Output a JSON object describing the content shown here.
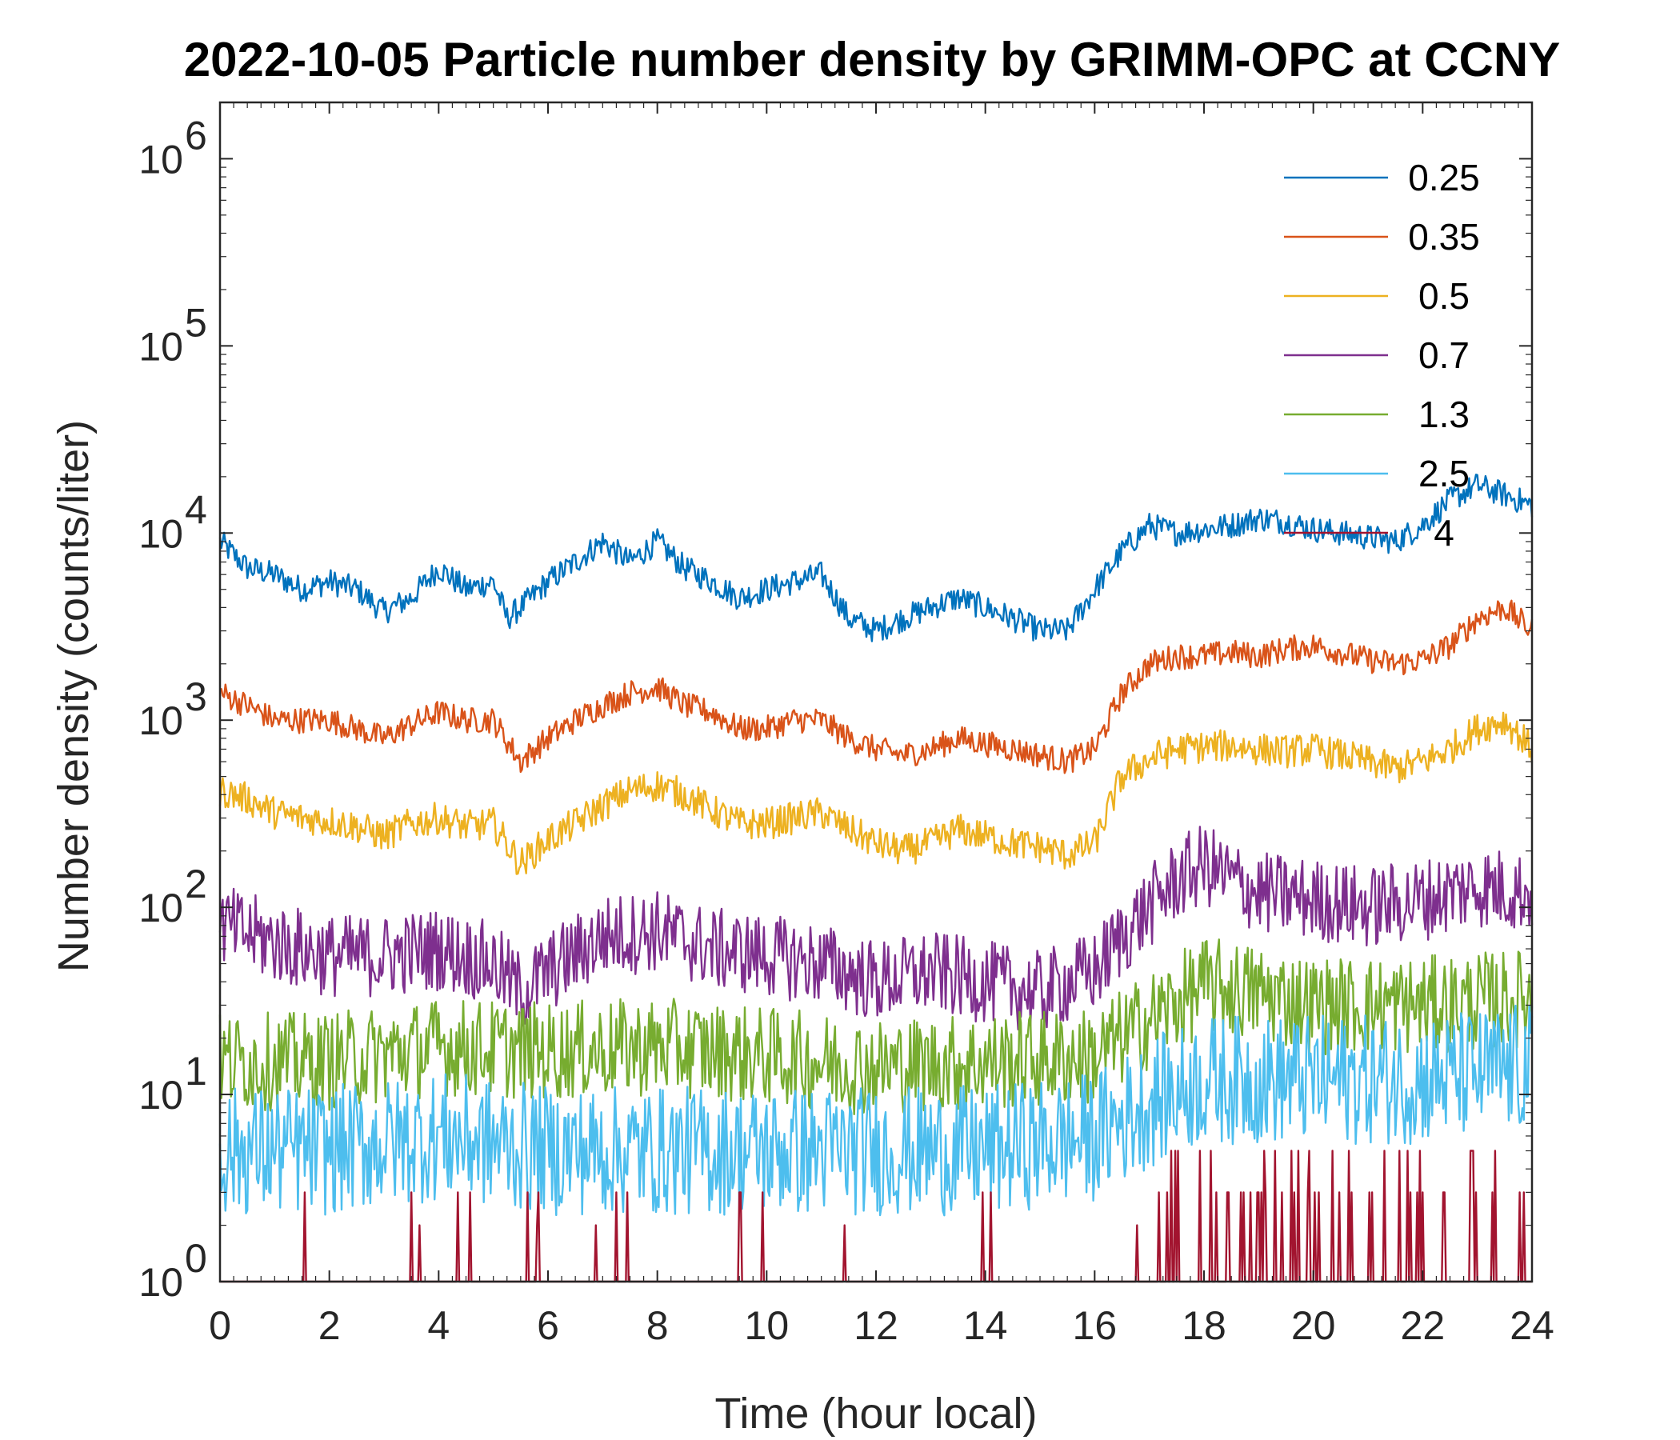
{
  "chart_data": {
    "type": "line",
    "title": "2022-10-05 Particle number density by GRIMM-OPC at CCNY",
    "xlabel": "Time (hour local)",
    "ylabel": "Number density (counts/liter)",
    "xlim": [
      0,
      24
    ],
    "ylim": [
      1,
      2000000
    ],
    "yscale": "log",
    "x_ticks": [
      0,
      2,
      4,
      6,
      8,
      10,
      12,
      14,
      16,
      18,
      20,
      22,
      24
    ],
    "y_ticks": [
      {
        "value": 1,
        "base": "10",
        "exp": "0"
      },
      {
        "value": 10,
        "base": "10",
        "exp": "1"
      },
      {
        "value": 100,
        "base": "10",
        "exp": "2"
      },
      {
        "value": 1000,
        "base": "10",
        "exp": "3"
      },
      {
        "value": 10000,
        "base": "10",
        "exp": "4"
      },
      {
        "value": 100000,
        "base": "10",
        "exp": "5"
      },
      {
        "value": 1000000,
        "base": "10",
        "exp": "6"
      }
    ],
    "grid": false,
    "legend_position": "top-right",
    "series": [
      {
        "name": "0.25",
        "color": "#0072BD",
        "x": [
          0,
          0.5,
          1,
          1.5,
          2,
          2.5,
          3,
          3.5,
          4,
          4.5,
          5,
          5.25,
          5.5,
          6,
          6.5,
          7,
          7.5,
          8,
          8.5,
          9,
          9.5,
          10,
          10.5,
          11,
          11.5,
          12,
          12.5,
          13,
          13.5,
          14,
          14.5,
          15,
          15.5,
          16,
          16.5,
          17,
          17.5,
          18,
          18.5,
          19,
          19.5,
          20,
          20.5,
          21,
          21.5,
          22,
          22.5,
          23,
          23.5,
          24
        ],
        "y": [
          9000,
          6500,
          6000,
          5000,
          5500,
          5000,
          3800,
          4500,
          6500,
          5000,
          5500,
          3500,
          4000,
          5500,
          7000,
          9000,
          7000,
          9000,
          6500,
          5500,
          4500,
          5000,
          5500,
          6000,
          3500,
          3000,
          3500,
          4000,
          4500,
          4000,
          3500,
          3000,
          3000,
          5000,
          8000,
          11000,
          10000,
          10500,
          11000,
          12000,
          11500,
          10500,
          10000,
          9500,
          9000,
          11000,
          15000,
          18000,
          16000,
          14000
        ]
      },
      {
        "name": "0.35",
        "color": "#D95319",
        "x": [
          0,
          0.5,
          1,
          1.5,
          2,
          2.5,
          3,
          3.5,
          4,
          4.5,
          5,
          5.5,
          6,
          6.5,
          7,
          7.5,
          8,
          8.5,
          9,
          9.5,
          10,
          10.5,
          11,
          11.5,
          12,
          12.5,
          13,
          13.5,
          14,
          14.5,
          15,
          15.5,
          16,
          16.5,
          17,
          17.5,
          18,
          18.5,
          19,
          19.5,
          20,
          20.5,
          21,
          21.5,
          22,
          22.5,
          23,
          23.5,
          24
        ],
        "y": [
          1400,
          1200,
          1000,
          1000,
          1000,
          900,
          800,
          950,
          1100,
          1000,
          1000,
          600,
          800,
          1000,
          1200,
          1400,
          1500,
          1200,
          1100,
          900,
          900,
          1000,
          1000,
          800,
          700,
          650,
          700,
          800,
          750,
          700,
          650,
          600,
          700,
          1400,
          2000,
          2200,
          2200,
          2300,
          2200,
          2400,
          2500,
          2300,
          2100,
          2000,
          2100,
          2500,
          3500,
          4000,
          3000
        ]
      },
      {
        "name": "0.5",
        "color": "#EDB120",
        "x": [
          0,
          0.5,
          1,
          1.5,
          2,
          2.5,
          3,
          3.5,
          4,
          4.5,
          5,
          5.5,
          6,
          6.5,
          7,
          7.5,
          8,
          8.5,
          9,
          9.5,
          10,
          10.5,
          11,
          11.5,
          12,
          12.5,
          13,
          13.5,
          14,
          14.5,
          15,
          15.5,
          16,
          16.5,
          17,
          17.5,
          18,
          18.5,
          19,
          19.5,
          20,
          20.5,
          21,
          21.5,
          22,
          22.5,
          23,
          23.5,
          24
        ],
        "y": [
          420,
          380,
          320,
          300,
          290,
          270,
          240,
          280,
          300,
          270,
          280,
          170,
          230,
          280,
          350,
          420,
          450,
          400,
          330,
          280,
          280,
          300,
          320,
          260,
          220,
          200,
          220,
          260,
          240,
          220,
          210,
          190,
          220,
          500,
          620,
          700,
          720,
          730,
          700,
          680,
          700,
          650,
          600,
          550,
          600,
          700,
          900,
          1000,
          700
        ]
      },
      {
        "name": "0.7",
        "color": "#7E2F8E",
        "x": [
          0,
          1,
          2,
          3,
          4,
          5,
          5.5,
          6,
          7,
          8,
          9,
          10,
          11,
          12,
          13,
          14,
          15,
          16,
          16.5,
          17,
          17.5,
          18,
          18.5,
          19,
          20,
          21,
          22,
          23,
          24
        ],
        "y": [
          80,
          65,
          55,
          55,
          60,
          50,
          35,
          45,
          70,
          75,
          60,
          55,
          50,
          40,
          45,
          40,
          35,
          45,
          70,
          100,
          140,
          170,
          140,
          120,
          110,
          100,
          110,
          130,
          120
        ]
      },
      {
        "name": "1.3",
        "color": "#77AC30",
        "x": [
          0,
          2,
          4,
          6,
          8,
          10,
          12,
          14,
          16,
          17,
          18,
          19,
          20,
          22,
          24
        ],
        "y": [
          15,
          15,
          18,
          17,
          18,
          16,
          14,
          15,
          16,
          25,
          38,
          35,
          30,
          30,
          33
        ]
      },
      {
        "name": "2.5",
        "color": "#4DBEEE",
        "x": [
          0,
          2,
          4,
          6,
          8,
          10,
          12,
          14,
          16,
          17,
          18,
          20,
          22,
          24
        ],
        "y": [
          5,
          5,
          6,
          5,
          5,
          5,
          5,
          5,
          6,
          9,
          12,
          12,
          12,
          14
        ]
      },
      {
        "name": "4",
        "color": "#A2142F",
        "x": [
          0,
          4,
          8,
          12,
          17,
          18,
          19,
          20,
          21,
          22,
          23,
          24
        ],
        "y": [
          1,
          1,
          1,
          1,
          1,
          1.5,
          1.5,
          1.5,
          2,
          2,
          2.5,
          2.5
        ]
      }
    ]
  }
}
